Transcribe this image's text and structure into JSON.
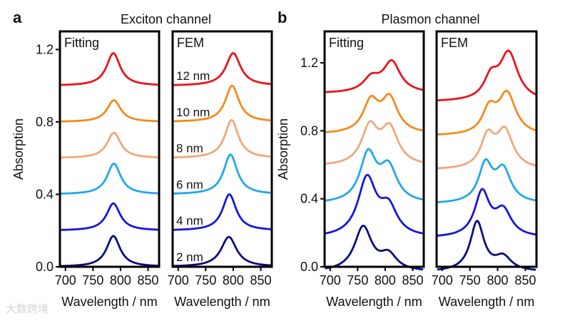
{
  "chart_data": [
    {
      "type": "line",
      "panel_letter": "a",
      "group_title": "Exciton channel",
      "title": "Fitting",
      "xlabel": "Wavelength / nm",
      "ylabel": "Absorption",
      "xlim": [
        690,
        870
      ],
      "ylim": [
        0,
        1.3
      ],
      "xticks": [
        700,
        750,
        800,
        850
      ],
      "yticks": [
        0.0,
        0.4,
        0.8,
        1.2
      ],
      "ytick_labels": [
        "0.0",
        "0.4",
        "0.8",
        "1.2"
      ],
      "series": [
        {
          "name": "2 nm",
          "color": "#0c0c80",
          "offset": 0.0,
          "peaks": [
            {
              "center": 787,
              "amplitude": 0.17,
              "fwhm": 30
            }
          ]
        },
        {
          "name": "4 nm",
          "color": "#1616e0",
          "offset": 0.2,
          "peaks": [
            {
              "center": 787,
              "amplitude": 0.15,
              "fwhm": 30
            }
          ]
        },
        {
          "name": "6 nm",
          "color": "#20a8ee",
          "offset": 0.4,
          "peaks": [
            {
              "center": 788,
              "amplitude": 0.17,
              "fwhm": 30
            }
          ]
        },
        {
          "name": "8 nm",
          "color": "#f0a878",
          "offset": 0.6,
          "peaks": [
            {
              "center": 788,
              "amplitude": 0.14,
              "fwhm": 30
            }
          ]
        },
        {
          "name": "10 nm",
          "color": "#f5891c",
          "offset": 0.8,
          "peaks": [
            {
              "center": 788,
              "amplitude": 0.12,
              "fwhm": 30
            }
          ]
        },
        {
          "name": "12 nm",
          "color": "#e8141c",
          "offset": 1.0,
          "peaks": [
            {
              "center": 787,
              "amplitude": 0.18,
              "fwhm": 30
            }
          ]
        }
      ]
    },
    {
      "type": "line",
      "title": "FEM",
      "xlabel": "Wavelength / nm",
      "xlim": [
        690,
        870
      ],
      "ylim": [
        0,
        1.3
      ],
      "xticks": [
        700,
        750,
        800,
        850
      ],
      "series": [
        {
          "name": "2 nm",
          "color": "#0c0c80",
          "offset": 0.0,
          "peaks": [
            {
              "center": 792,
              "amplitude": 0.165,
              "fwhm": 34
            }
          ]
        },
        {
          "name": "4 nm",
          "color": "#1616e0",
          "offset": 0.2,
          "peaks": [
            {
              "center": 793,
              "amplitude": 0.2,
              "fwhm": 30
            }
          ]
        },
        {
          "name": "6 nm",
          "color": "#20a8ee",
          "offset": 0.4,
          "peaks": [
            {
              "center": 795,
              "amplitude": 0.22,
              "fwhm": 30
            }
          ]
        },
        {
          "name": "8 nm",
          "color": "#f0a878",
          "offset": 0.6,
          "peaks": [
            {
              "center": 797,
              "amplitude": 0.21,
              "fwhm": 30
            }
          ]
        },
        {
          "name": "10 nm",
          "color": "#f5891c",
          "offset": 0.8,
          "peaks": [
            {
              "center": 798,
              "amplitude": 0.2,
              "fwhm": 30
            }
          ]
        },
        {
          "name": "12 nm",
          "color": "#e8141c",
          "offset": 1.0,
          "peaks": [
            {
              "center": 800,
              "amplitude": 0.18,
              "fwhm": 32
            }
          ]
        }
      ]
    },
    {
      "type": "line",
      "panel_letter": "b",
      "group_title": "Plasmon channel",
      "title": "Fitting",
      "xlabel": "Wavelength / nm",
      "ylabel": "Absorption",
      "xlim": [
        690,
        870
      ],
      "ylim": [
        0,
        1.385
      ],
      "xticks": [
        700,
        750,
        800,
        850
      ],
      "yticks": [
        0.0,
        0.4,
        0.8,
        1.2
      ],
      "ytick_labels": [
        "0.0",
        "0.4",
        "0.8",
        "1.2"
      ],
      "series": [
        {
          "name": "2 nm",
          "color": "#0c0c80",
          "offset": -0.03,
          "peaks": [
            {
              "center": 760,
              "amplitude": 0.26,
              "fwhm": 38
            },
            {
              "center": 806,
              "amplitude": 0.09,
              "fwhm": 36
            }
          ]
        },
        {
          "name": "4 nm",
          "color": "#1616e0",
          "offset": 0.17,
          "peaks": [
            {
              "center": 767,
              "amplitude": 0.34,
              "fwhm": 40
            },
            {
              "center": 806,
              "amplitude": 0.16,
              "fwhm": 38
            }
          ]
        },
        {
          "name": "6 nm",
          "color": "#20a8ee",
          "offset": 0.37,
          "peaks": [
            {
              "center": 769,
              "amplitude": 0.28,
              "fwhm": 36
            },
            {
              "center": 806,
              "amplitude": 0.2,
              "fwhm": 38
            }
          ]
        },
        {
          "name": "8 nm",
          "color": "#f0a878",
          "offset": 0.59,
          "peaks": [
            {
              "center": 772,
              "amplitude": 0.22,
              "fwhm": 36
            },
            {
              "center": 808,
              "amplitude": 0.21,
              "fwhm": 38
            }
          ]
        },
        {
          "name": "10 nm",
          "color": "#f5891c",
          "offset": 0.78,
          "peaks": [
            {
              "center": 774,
              "amplitude": 0.18,
              "fwhm": 34
            },
            {
              "center": 808,
              "amplitude": 0.2,
              "fwhm": 36
            }
          ]
        },
        {
          "name": "12 nm",
          "color": "#e8141c",
          "offset": 1.02,
          "peaks": [
            {
              "center": 775,
              "amplitude": 0.08,
              "fwhm": 36
            },
            {
              "center": 812,
              "amplitude": 0.18,
              "fwhm": 38
            }
          ]
        }
      ]
    },
    {
      "type": "line",
      "title": "FEM",
      "xlabel": "Wavelength / nm",
      "xlim": [
        690,
        870
      ],
      "ylim": [
        0,
        1.385
      ],
      "xticks": [
        700,
        750,
        800,
        850
      ],
      "series": [
        {
          "name": "2 nm",
          "color": "#0c0c80",
          "offset": -0.03,
          "peaks": [
            {
              "center": 763,
              "amplitude": 0.29,
              "fwhm": 30
            },
            {
              "center": 810,
              "amplitude": 0.08,
              "fwhm": 36
            }
          ]
        },
        {
          "name": "4 nm",
          "color": "#1616e0",
          "offset": 0.17,
          "peaks": [
            {
              "center": 772,
              "amplitude": 0.26,
              "fwhm": 32
            },
            {
              "center": 810,
              "amplitude": 0.15,
              "fwhm": 36
            }
          ]
        },
        {
          "name": "6 nm",
          "color": "#20a8ee",
          "offset": 0.37,
          "peaks": [
            {
              "center": 778,
              "amplitude": 0.22,
              "fwhm": 30
            },
            {
              "center": 810,
              "amplitude": 0.19,
              "fwhm": 34
            }
          ]
        },
        {
          "name": "8 nm",
          "color": "#f0a878",
          "offset": 0.57,
          "peaks": [
            {
              "center": 782,
              "amplitude": 0.18,
              "fwhm": 30
            },
            {
              "center": 813,
              "amplitude": 0.22,
              "fwhm": 36
            }
          ]
        },
        {
          "name": "10 nm",
          "color": "#f5891c",
          "offset": 0.77,
          "peaks": [
            {
              "center": 785,
              "amplitude": 0.14,
              "fwhm": 30
            },
            {
              "center": 817,
              "amplitude": 0.24,
              "fwhm": 38
            }
          ]
        },
        {
          "name": "12 nm",
          "color": "#e8141c",
          "offset": 0.97,
          "peaks": [
            {
              "center": 788,
              "amplitude": 0.12,
              "fwhm": 30
            },
            {
              "center": 820,
              "amplitude": 0.28,
              "fwhm": 40
            }
          ]
        }
      ]
    }
  ],
  "watermark": "大数跨境"
}
